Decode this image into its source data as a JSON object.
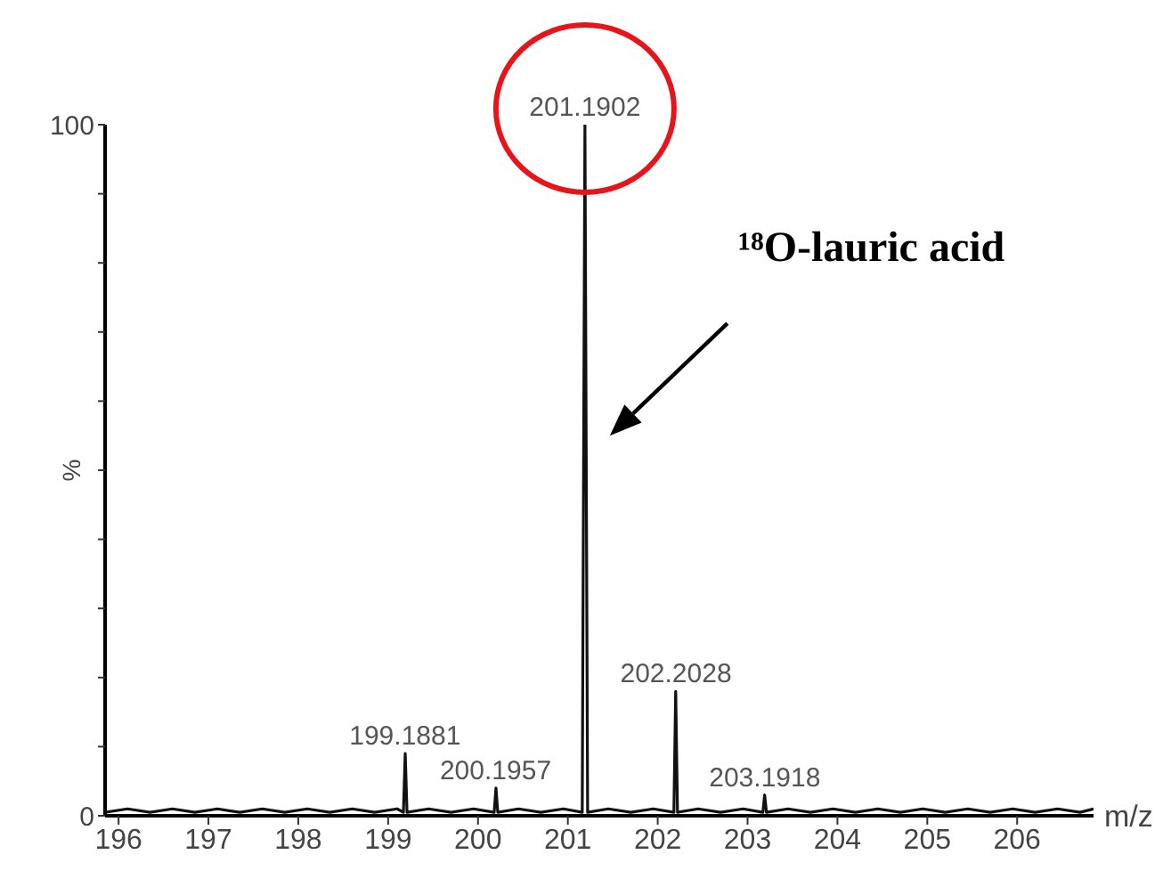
{
  "chart_data": {
    "type": "line",
    "xlabel": "m/z",
    "ylabel": "%",
    "color": "#111111",
    "marker": "none",
    "x": [
      195.85,
      196.1,
      196.35,
      196.6,
      196.85,
      197.1,
      197.35,
      197.6,
      197.85,
      198.1,
      198.35,
      198.6,
      198.85,
      199.1,
      199.17,
      199.19,
      199.21,
      199.45,
      199.7,
      199.95,
      200.18,
      200.2,
      200.22,
      200.45,
      200.7,
      200.95,
      201.16,
      201.19,
      201.22,
      201.45,
      201.7,
      201.95,
      202.18,
      202.2,
      202.22,
      202.45,
      202.7,
      202.95,
      203.17,
      203.19,
      203.21,
      203.45,
      203.7,
      203.95,
      204.2,
      204.45,
      204.7,
      204.95,
      205.2,
      205.45,
      205.7,
      205.95,
      206.2,
      206.45,
      206.7,
      206.85
    ],
    "values": [
      0.5,
      1,
      0.5,
      1,
      0.5,
      1,
      0.5,
      1,
      0.5,
      1,
      0.5,
      1,
      0.5,
      1,
      0.5,
      9,
      0.5,
      1,
      0.5,
      1,
      0.5,
      4,
      0.5,
      1,
      0.5,
      1,
      0.5,
      100,
      0.5,
      1,
      0.5,
      1,
      0.5,
      18,
      0.5,
      1,
      0.5,
      1,
      0.5,
      3,
      0.5,
      1,
      0.5,
      1,
      0.5,
      1,
      0.5,
      1,
      0.5,
      1,
      0.5,
      1,
      0.5,
      1,
      0.5,
      1
    ],
    "xlim": [
      195.85,
      206.85
    ],
    "xticks": [
      196,
      197,
      198,
      199,
      200,
      201,
      202,
      203,
      204,
      205,
      206
    ],
    "ylim": [
      0,
      100
    ],
    "yticks": [
      0,
      {
        "value": 10,
        "label": null
      },
      {
        "value": 20,
        "label": null
      },
      {
        "value": 30,
        "label": null
      },
      {
        "value": 40,
        "label": null
      },
      {
        "value": 50,
        "label": null
      },
      {
        "value": 60,
        "label": null
      },
      {
        "value": 70,
        "label": null
      },
      {
        "value": 80,
        "label": null
      },
      {
        "value": 90,
        "label": null
      },
      100
    ],
    "annotations": [
      {
        "text": "201.1902",
        "x": 201.1902,
        "y": 100
      },
      {
        "text": "199.1881",
        "x": 199.1881,
        "y": 9
      },
      {
        "text": "200.1957",
        "x": 200.1957,
        "y": 4
      },
      {
        "text": "202.2028",
        "x": 202.2028,
        "y": 18
      },
      {
        "text": "203.1918",
        "x": 203.1918,
        "y": 3
      },
      "¹⁸O-lauric acid"
    ]
  }
}
